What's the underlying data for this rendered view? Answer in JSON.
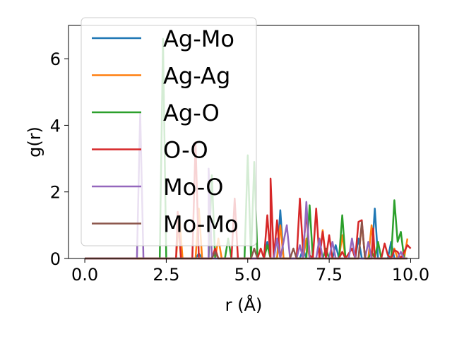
{
  "chart_data": {
    "type": "line",
    "xlabel": "r (Å)",
    "ylabel": "g(r)",
    "xlim": [
      -0.5,
      10.25
    ],
    "ylim": [
      0,
      7
    ],
    "x_ticks": [
      0.0,
      2.5,
      5.0,
      7.5,
      10.0
    ],
    "x_tick_labels": [
      "0.0",
      "2.5",
      "5.0",
      "7.5",
      "10.0"
    ],
    "y_ticks": [
      0,
      2,
      4,
      6
    ],
    "y_tick_labels": [
      "0",
      "2",
      "4",
      "6"
    ],
    "grid": false,
    "legend_position": "top-left",
    "series": [
      {
        "name": "Ag-Mo",
        "color": "#1f77b4",
        "points": [
          [
            0,
            0
          ],
          [
            3.4,
            0
          ],
          [
            3.5,
            0.15
          ],
          [
            3.6,
            0
          ],
          [
            5.5,
            0
          ],
          [
            5.6,
            0.5
          ],
          [
            5.7,
            0
          ],
          [
            5.9,
            0
          ],
          [
            6.0,
            1.45
          ],
          [
            6.1,
            0
          ],
          [
            6.6,
            0
          ],
          [
            6.7,
            0.3
          ],
          [
            6.8,
            0
          ],
          [
            7.6,
            0
          ],
          [
            7.7,
            0.4
          ],
          [
            7.8,
            0
          ],
          [
            8.3,
            0
          ],
          [
            8.4,
            0.6
          ],
          [
            8.5,
            0
          ],
          [
            8.8,
            0
          ],
          [
            8.9,
            1.5
          ],
          [
            9.0,
            0
          ],
          [
            9.3,
            0
          ],
          [
            9.4,
            0.5
          ],
          [
            9.5,
            0
          ],
          [
            9.9,
            0
          ]
        ]
      },
      {
        "name": "Ag-Ag",
        "color": "#ff7f0e",
        "points": [
          [
            0,
            0
          ],
          [
            2.8,
            0
          ],
          [
            2.9,
            1.3
          ],
          [
            3.0,
            0
          ],
          [
            3.4,
            0
          ],
          [
            3.5,
            1.5
          ],
          [
            3.6,
            0
          ],
          [
            4.0,
            0
          ],
          [
            4.1,
            0.6
          ],
          [
            4.2,
            0
          ],
          [
            5.9,
            0
          ],
          [
            6.0,
            1.0
          ],
          [
            6.1,
            0
          ],
          [
            6.7,
            0
          ],
          [
            6.8,
            0.6
          ],
          [
            6.9,
            0
          ],
          [
            7.2,
            0
          ],
          [
            7.3,
            0.85
          ],
          [
            7.4,
            0
          ],
          [
            7.8,
            0
          ],
          [
            7.9,
            0.7
          ],
          [
            8.0,
            0
          ],
          [
            8.4,
            0
          ],
          [
            8.5,
            1.05
          ],
          [
            8.6,
            0
          ],
          [
            8.7,
            0
          ],
          [
            8.8,
            1.0
          ],
          [
            8.9,
            0
          ],
          [
            9.4,
            0
          ],
          [
            9.5,
            0.3
          ],
          [
            9.6,
            0
          ],
          [
            9.8,
            0
          ],
          [
            9.9,
            0.6
          ]
        ]
      },
      {
        "name": "Ag-O",
        "color": "#2ca02c",
        "points": [
          [
            0,
            0
          ],
          [
            2.3,
            0
          ],
          [
            2.4,
            6.6
          ],
          [
            2.5,
            0
          ],
          [
            3.8,
            0
          ],
          [
            3.9,
            2.5
          ],
          [
            4.0,
            0
          ],
          [
            4.3,
            0
          ],
          [
            4.4,
            0.6
          ],
          [
            4.5,
            0
          ],
          [
            4.9,
            0
          ],
          [
            5.0,
            3.1
          ],
          [
            5.1,
            0
          ],
          [
            5.1,
            0
          ],
          [
            5.2,
            2.9
          ],
          [
            5.3,
            0
          ],
          [
            5.5,
            0
          ],
          [
            5.6,
            0.4
          ],
          [
            5.7,
            0
          ],
          [
            6.8,
            0
          ],
          [
            6.9,
            1.6
          ],
          [
            7.0,
            0
          ],
          [
            7.3,
            0
          ],
          [
            7.4,
            0.3
          ],
          [
            7.5,
            0
          ],
          [
            7.8,
            0
          ],
          [
            7.9,
            1.3
          ],
          [
            8.0,
            0
          ],
          [
            8.7,
            0
          ],
          [
            8.8,
            0.2
          ],
          [
            8.9,
            0
          ],
          [
            9.0,
            0.5
          ],
          [
            9.1,
            0
          ],
          [
            9.4,
            0
          ],
          [
            9.5,
            1.75
          ],
          [
            9.6,
            0.5
          ],
          [
            9.7,
            0.8
          ],
          [
            9.8,
            0
          ]
        ]
      },
      {
        "name": "O-O",
        "color": "#d62728",
        "points": [
          [
            0,
            0
          ],
          [
            2.8,
            0
          ],
          [
            2.85,
            1.4
          ],
          [
            2.95,
            0
          ],
          [
            3.3,
            0
          ],
          [
            3.4,
            3.5
          ],
          [
            3.5,
            0
          ],
          [
            3.9,
            0
          ],
          [
            4.0,
            0.3
          ],
          [
            4.1,
            0
          ],
          [
            4.5,
            0
          ],
          [
            4.6,
            1.8
          ],
          [
            4.7,
            0
          ],
          [
            5.3,
            0
          ],
          [
            5.4,
            0.3
          ],
          [
            5.5,
            0
          ],
          [
            5.6,
            1.3
          ],
          [
            5.7,
            0
          ],
          [
            5.7,
            2.4
          ],
          [
            5.8,
            0
          ],
          [
            5.9,
            1.15
          ],
          [
            6.0,
            0
          ],
          [
            6.5,
            0
          ],
          [
            6.6,
            1.8
          ],
          [
            6.7,
            0.2
          ],
          [
            6.8,
            1.4
          ],
          [
            6.9,
            0.1
          ],
          [
            7.0,
            0
          ],
          [
            7.1,
            1.5
          ],
          [
            7.2,
            0
          ],
          [
            7.3,
            0.8
          ],
          [
            7.4,
            0
          ],
          [
            7.5,
            0.7
          ],
          [
            7.6,
            0
          ],
          [
            7.8,
            0
          ],
          [
            7.9,
            0.2
          ],
          [
            8.0,
            0
          ],
          [
            8.2,
            0.3
          ],
          [
            8.3,
            0
          ],
          [
            8.4,
            1.1
          ],
          [
            8.5,
            1.15
          ],
          [
            8.6,
            0
          ],
          [
            8.8,
            0
          ],
          [
            8.85,
            0.9
          ],
          [
            8.9,
            0
          ],
          [
            9.1,
            0
          ],
          [
            9.2,
            0.45
          ],
          [
            9.3,
            0.1
          ],
          [
            9.4,
            0
          ],
          [
            9.5,
            0.25
          ],
          [
            9.6,
            0.2
          ],
          [
            9.7,
            0
          ],
          [
            9.9,
            0.4
          ],
          [
            10.0,
            0.3
          ]
        ]
      },
      {
        "name": "Mo-O",
        "color": "#9467bd",
        "points": [
          [
            0,
            0
          ],
          [
            1.6,
            0
          ],
          [
            1.7,
            4.4
          ],
          [
            1.8,
            0
          ],
          [
            3.8,
            0
          ],
          [
            3.8,
            2.7
          ],
          [
            3.9,
            0
          ],
          [
            5.8,
            0
          ],
          [
            5.9,
            0.6
          ],
          [
            6.0,
            0
          ],
          [
            6.2,
            1.0
          ],
          [
            6.3,
            0
          ],
          [
            6.5,
            0
          ],
          [
            6.6,
            0.4
          ],
          [
            6.7,
            0
          ],
          [
            6.8,
            1.7
          ],
          [
            6.9,
            0
          ],
          [
            7.1,
            0
          ],
          [
            7.2,
            0.6
          ],
          [
            7.3,
            0
          ],
          [
            7.5,
            0
          ],
          [
            7.6,
            0.5
          ],
          [
            7.7,
            0
          ],
          [
            8.1,
            0
          ],
          [
            8.2,
            0.6
          ],
          [
            8.3,
            0
          ],
          [
            8.6,
            0
          ],
          [
            8.7,
            0.5
          ],
          [
            8.8,
            0
          ],
          [
            9.6,
            0
          ],
          [
            9.7,
            0.2
          ],
          [
            9.8,
            0
          ]
        ]
      },
      {
        "name": "Mo-Mo",
        "color": "#8c564b",
        "points": [
          [
            0,
            0
          ],
          [
            3.9,
            0
          ],
          [
            4.0,
            0.2
          ],
          [
            4.1,
            0
          ],
          [
            5.1,
            0
          ],
          [
            5.2,
            0.3
          ],
          [
            5.3,
            0
          ],
          [
            6.3,
            0
          ],
          [
            6.4,
            0.3
          ],
          [
            6.5,
            0
          ],
          [
            8.4,
            0
          ],
          [
            8.5,
            1.1
          ],
          [
            8.6,
            0
          ],
          [
            9.9,
            0
          ]
        ]
      }
    ]
  }
}
